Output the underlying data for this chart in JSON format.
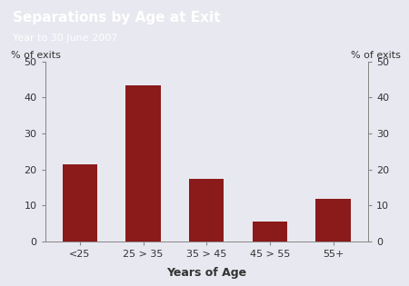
{
  "title": "Separations by Age at Exit",
  "subtitle": "Year to 30 June 2007",
  "xlabel": "Years of Age",
  "ylabel_left": "% of exits",
  "ylabel_right": "% of exits",
  "categories": [
    "<25",
    "25 > 35",
    "35 > 45",
    "45 > 55",
    "55+"
  ],
  "values": [
    21.5,
    43.5,
    17.5,
    5.5,
    12.0
  ],
  "bar_color": "#8B1a1a",
  "ylim": [
    0,
    50
  ],
  "yticks": [
    0,
    10,
    20,
    30,
    40,
    50
  ],
  "plot_bg_color": "#e8e8f0",
  "fig_bg_color": "#e8e8f0",
  "header_color": "#4a3070",
  "title_fontsize": 11,
  "subtitle_fontsize": 8,
  "axis_label_fontsize": 8,
  "tick_fontsize": 8,
  "header_text_color": "#ffffff",
  "xlabel_fontsize": 9
}
